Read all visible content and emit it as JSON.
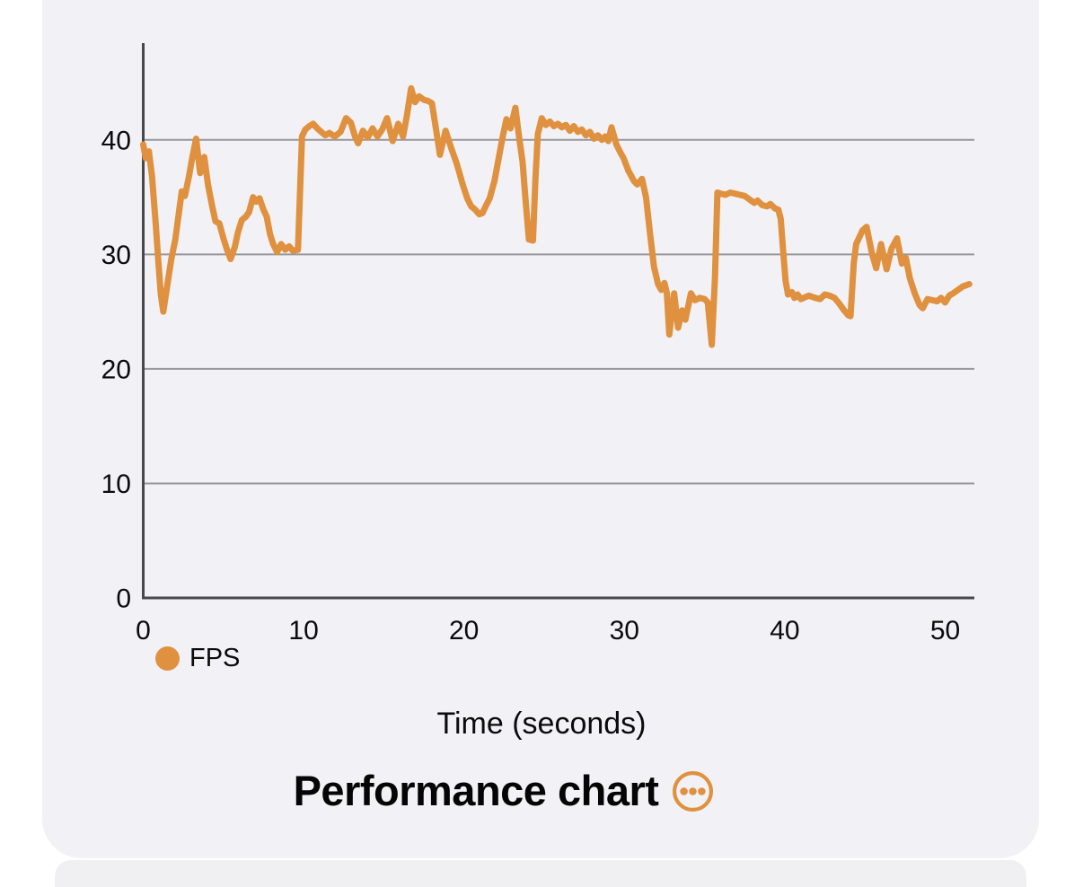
{
  "colors": {
    "accent_orange": "#E0913F",
    "card_background": "#F2F2F6",
    "peek_card_background": "#F0F0F3",
    "page_background": "#FFFFFF",
    "axis": "#48484A",
    "gridline": "#97979B",
    "tick_text": "#0B0B0C",
    "title_text": "#050506"
  },
  "legend": {
    "label": "FPS"
  },
  "title_row": {
    "title": "Performance chart",
    "menu_icon": "ellipsis-circle"
  },
  "chart_data": {
    "type": "line",
    "title": "Performance chart",
    "xlabel": "Time (seconds)",
    "ylabel": "",
    "x_ticks": [
      0,
      10,
      20,
      30,
      40,
      50
    ],
    "y_ticks": [
      0,
      10,
      20,
      30,
      40
    ],
    "xlim": [
      0,
      51.8
    ],
    "ylim": [
      0,
      48.5
    ],
    "grid": "horizontal",
    "legend_position": "bottom-left",
    "series": [
      {
        "name": "FPS",
        "color": "#E0913F",
        "points": [
          [
            0,
            39.6
          ],
          [
            0.15,
            38.4
          ],
          [
            0.35,
            39
          ],
          [
            0.55,
            36.8
          ],
          [
            0.75,
            33.2
          ],
          [
            0.95,
            29.2
          ],
          [
            1.1,
            26.5
          ],
          [
            1.25,
            25
          ],
          [
            1.5,
            27.3
          ],
          [
            1.75,
            29.6
          ],
          [
            2,
            31.3
          ],
          [
            2.2,
            33.4
          ],
          [
            2.4,
            35.5
          ],
          [
            2.6,
            35.1
          ],
          [
            2.85,
            36.8
          ],
          [
            3.05,
            38.4
          ],
          [
            3.3,
            40.1
          ],
          [
            3.55,
            37.1
          ],
          [
            3.8,
            38.5
          ],
          [
            4.05,
            36
          ],
          [
            4.3,
            34.2
          ],
          [
            4.5,
            32.9
          ],
          [
            4.75,
            32.7
          ],
          [
            5,
            31.4
          ],
          [
            5.2,
            30.5
          ],
          [
            5.45,
            29.6
          ],
          [
            5.7,
            30.6
          ],
          [
            5.9,
            31.9
          ],
          [
            6.15,
            33
          ],
          [
            6.4,
            33.3
          ],
          [
            6.6,
            33.7
          ],
          [
            6.85,
            35
          ],
          [
            7.05,
            34.6
          ],
          [
            7.25,
            34.9
          ],
          [
            7.5,
            33.9
          ],
          [
            7.7,
            33.3
          ],
          [
            7.9,
            31.8
          ],
          [
            8.1,
            30.9
          ],
          [
            8.35,
            30.2
          ],
          [
            8.6,
            30.9
          ],
          [
            8.85,
            30.4
          ],
          [
            9.1,
            30.7
          ],
          [
            9.35,
            30.3
          ],
          [
            9.65,
            30.4
          ],
          [
            9.9,
            40.3
          ],
          [
            10.1,
            40.9
          ],
          [
            10.35,
            41.2
          ],
          [
            10.6,
            41.4
          ],
          [
            10.85,
            41
          ],
          [
            11.1,
            40.7
          ],
          [
            11.35,
            40.4
          ],
          [
            11.6,
            40.6
          ],
          [
            11.95,
            40.3
          ],
          [
            12.3,
            40.7
          ],
          [
            12.65,
            41.9
          ],
          [
            12.95,
            41.5
          ],
          [
            13.2,
            40.3
          ],
          [
            13.4,
            39.7
          ],
          [
            13.7,
            40.8
          ],
          [
            14,
            40.2
          ],
          [
            14.3,
            41
          ],
          [
            14.6,
            40.3
          ],
          [
            14.9,
            40.9
          ],
          [
            15.2,
            41.9
          ],
          [
            15.55,
            39.9
          ],
          [
            15.9,
            41.4
          ],
          [
            16.2,
            40.3
          ],
          [
            16.45,
            42.2
          ],
          [
            16.7,
            44.5
          ],
          [
            16.95,
            43.3
          ],
          [
            17.2,
            43.8
          ],
          [
            17.5,
            43.5
          ],
          [
            17.75,
            43.4
          ],
          [
            18,
            43.2
          ],
          [
            18.25,
            41
          ],
          [
            18.5,
            38.7
          ],
          [
            18.85,
            40.8
          ],
          [
            19.2,
            39.3
          ],
          [
            19.55,
            37.9
          ],
          [
            19.9,
            36.2
          ],
          [
            20.2,
            34.9
          ],
          [
            20.45,
            34.2
          ],
          [
            20.7,
            33.9
          ],
          [
            20.95,
            33.5
          ],
          [
            21.15,
            33.6
          ],
          [
            21.35,
            34.2
          ],
          [
            21.6,
            34.9
          ],
          [
            21.9,
            36.4
          ],
          [
            22.15,
            38.3
          ],
          [
            22.4,
            40.2
          ],
          [
            22.65,
            41.8
          ],
          [
            22.9,
            41
          ],
          [
            23.2,
            42.8
          ],
          [
            23.45,
            40.1
          ],
          [
            23.65,
            38.1
          ],
          [
            23.85,
            34.5
          ],
          [
            24.05,
            31.3
          ],
          [
            24.3,
            31.2
          ],
          [
            24.45,
            36.5
          ],
          [
            24.6,
            40.5
          ],
          [
            24.85,
            41.9
          ],
          [
            25.1,
            41.3
          ],
          [
            25.35,
            41.6
          ],
          [
            25.6,
            41.2
          ],
          [
            25.85,
            41.4
          ],
          [
            26.1,
            41.1
          ],
          [
            26.35,
            41.3
          ],
          [
            26.6,
            40.8
          ],
          [
            26.85,
            41.2
          ],
          [
            27.1,
            40.7
          ],
          [
            27.35,
            40.9
          ],
          [
            27.6,
            40.4
          ],
          [
            27.85,
            40.7
          ],
          [
            28.1,
            40.1
          ],
          [
            28.35,
            40.4
          ],
          [
            28.6,
            40
          ],
          [
            28.8,
            40.3
          ],
          [
            29,
            39.9
          ],
          [
            29.2,
            41.1
          ],
          [
            29.5,
            39.6
          ],
          [
            29.75,
            38.9
          ],
          [
            29.95,
            38.4
          ],
          [
            30.25,
            37.3
          ],
          [
            30.6,
            36.4
          ],
          [
            30.8,
            36.1
          ],
          [
            31.1,
            36.6
          ],
          [
            31.35,
            35
          ],
          [
            31.6,
            31.8
          ],
          [
            31.85,
            28.9
          ],
          [
            32.1,
            27.4
          ],
          [
            32.3,
            26.9
          ],
          [
            32.5,
            27.5
          ],
          [
            32.65,
            26.6
          ],
          [
            32.8,
            23
          ],
          [
            33.1,
            26.6
          ],
          [
            33.35,
            23.6
          ],
          [
            33.6,
            25.1
          ],
          [
            33.8,
            24.3
          ],
          [
            34.15,
            26.6
          ],
          [
            34.4,
            26
          ],
          [
            34.7,
            26.2
          ],
          [
            35,
            26.1
          ],
          [
            35.2,
            25.8
          ],
          [
            35.45,
            22.1
          ],
          [
            35.65,
            28
          ],
          [
            35.8,
            35.4
          ],
          [
            36,
            35.3
          ],
          [
            36.3,
            35.2
          ],
          [
            36.6,
            35.4
          ],
          [
            36.9,
            35.3
          ],
          [
            37.2,
            35.2
          ],
          [
            37.5,
            35.1
          ],
          [
            37.8,
            34.8
          ],
          [
            38.1,
            34.5
          ],
          [
            38.3,
            34.7
          ],
          [
            38.6,
            34.3
          ],
          [
            38.9,
            34.2
          ],
          [
            39.1,
            34.4
          ],
          [
            39.4,
            34
          ],
          [
            39.6,
            33.9
          ],
          [
            39.75,
            33.1
          ],
          [
            39.9,
            30.3
          ],
          [
            40.05,
            27.7
          ],
          [
            40.2,
            26.5
          ],
          [
            40.45,
            26.7
          ],
          [
            40.6,
            26.2
          ],
          [
            40.8,
            26.5
          ],
          [
            41,
            26.1
          ],
          [
            41.5,
            26.4
          ],
          [
            41.9,
            26.2
          ],
          [
            42.2,
            26.1
          ],
          [
            42.5,
            26.5
          ],
          [
            42.8,
            26.4
          ],
          [
            43.1,
            26.2
          ],
          [
            43.4,
            25.7
          ],
          [
            43.7,
            25.1
          ],
          [
            43.95,
            24.7
          ],
          [
            44.1,
            24.6
          ],
          [
            44.3,
            29.2
          ],
          [
            44.45,
            30.9
          ],
          [
            44.85,
            32.1
          ],
          [
            45.1,
            32.4
          ],
          [
            45.45,
            30
          ],
          [
            45.7,
            28.8
          ],
          [
            46,
            30.9
          ],
          [
            46.35,
            28.7
          ],
          [
            46.65,
            30.5
          ],
          [
            47,
            31.4
          ],
          [
            47.3,
            29.2
          ],
          [
            47.55,
            29.7
          ],
          [
            47.8,
            27.9
          ],
          [
            48.1,
            26.6
          ],
          [
            48.4,
            25.6
          ],
          [
            48.6,
            25.3
          ],
          [
            48.9,
            26.1
          ],
          [
            49.2,
            26
          ],
          [
            49.5,
            25.9
          ],
          [
            49.75,
            26.2
          ],
          [
            50,
            25.8
          ],
          [
            50.25,
            26.4
          ],
          [
            50.5,
            26.6
          ],
          [
            50.8,
            26.9
          ],
          [
            51.1,
            27.2
          ],
          [
            51.3,
            27.3
          ],
          [
            51.5,
            27.4
          ]
        ]
      }
    ]
  }
}
